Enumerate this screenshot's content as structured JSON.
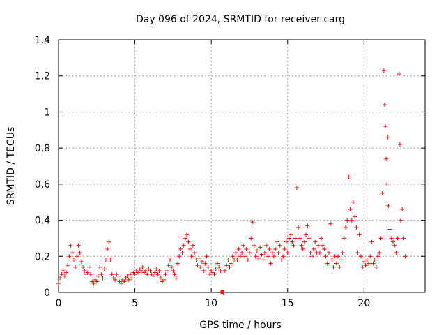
{
  "chart_data": {
    "type": "scatter",
    "title": "Day 096 of 2024, SRMTID for receiver carg",
    "xlabel": "GPS time / hours",
    "ylabel": "SRMTID / TECUs",
    "xlim": [
      0,
      24
    ],
    "ylim": [
      0,
      1.4
    ],
    "x_ticks": [
      0,
      5,
      10,
      15,
      20
    ],
    "x_tick_labels": [
      "0",
      "5",
      "10",
      "15",
      "20"
    ],
    "y_ticks": [
      0,
      0.2,
      0.4,
      0.6,
      0.8,
      1.0,
      1.2,
      1.4
    ],
    "y_tick_labels": [
      "0",
      "0.2",
      "0.4",
      "0.6",
      "0.8",
      "1",
      "1.2",
      "1.4"
    ],
    "grid": true,
    "marker": "+",
    "series": [
      {
        "name": "SRMTID",
        "color": "#ff0000",
        "x": [
          0.0,
          0.1,
          0.2,
          0.3,
          0.4,
          0.5,
          0.6,
          0.7,
          0.8,
          0.9,
          1.0,
          1.1,
          1.2,
          1.3,
          1.4,
          1.5,
          1.6,
          1.7,
          1.8,
          1.9,
          2.0,
          2.1,
          2.2,
          2.3,
          2.4,
          2.5,
          2.6,
          2.7,
          2.8,
          2.9,
          3.0,
          3.1,
          3.2,
          3.3,
          3.4,
          3.5,
          3.6,
          3.7,
          3.8,
          3.9,
          4.0,
          4.1,
          4.2,
          4.3,
          4.4,
          4.5,
          4.6,
          4.7,
          4.8,
          4.9,
          5.0,
          5.1,
          5.2,
          5.3,
          5.4,
          5.5,
          5.6,
          5.7,
          5.8,
          5.9,
          6.0,
          6.1,
          6.2,
          6.3,
          6.4,
          6.5,
          6.6,
          6.7,
          6.8,
          6.9,
          7.0,
          7.1,
          7.2,
          7.3,
          7.4,
          7.5,
          7.6,
          7.7,
          7.8,
          7.9,
          8.0,
          8.1,
          8.2,
          8.3,
          8.4,
          8.5,
          8.6,
          8.7,
          8.8,
          8.9,
          9.0,
          9.1,
          9.2,
          9.3,
          9.4,
          9.5,
          9.6,
          9.7,
          9.8,
          9.9,
          10.0,
          10.1,
          10.2,
          10.3,
          10.4,
          10.5,
          10.6,
          10.8,
          10.9,
          11.0,
          11.1,
          11.2,
          11.3,
          11.4,
          11.5,
          11.6,
          11.7,
          11.8,
          11.9,
          12.0,
          12.1,
          12.2,
          12.3,
          12.4,
          12.5,
          12.6,
          12.7,
          12.8,
          12.9,
          13.0,
          13.1,
          13.2,
          13.3,
          13.4,
          13.5,
          13.6,
          13.7,
          13.8,
          13.9,
          14.0,
          14.1,
          14.2,
          14.3,
          14.4,
          14.5,
          14.6,
          14.7,
          14.8,
          14.9,
          15.0,
          15.1,
          15.2,
          15.3,
          15.4,
          15.5,
          15.6,
          15.7,
          15.8,
          15.9,
          16.0,
          16.1,
          16.2,
          16.3,
          16.4,
          16.5,
          16.6,
          16.7,
          16.8,
          16.9,
          17.0,
          17.1,
          17.2,
          17.3,
          17.4,
          17.5,
          17.6,
          17.7,
          17.8,
          17.9,
          18.0,
          18.1,
          18.2,
          18.3,
          18.4,
          18.5,
          18.6,
          18.7,
          18.8,
          18.9,
          19.0,
          19.1,
          19.2,
          19.3,
          19.4,
          19.5,
          19.6,
          19.7,
          19.8,
          19.9,
          20.0,
          20.1,
          20.2,
          20.3,
          20.4,
          20.5,
          20.6,
          20.7,
          20.8,
          20.9,
          21.0,
          21.1,
          21.2,
          21.3,
          21.35,
          21.4,
          21.45,
          21.5,
          21.55,
          21.6,
          21.7,
          21.8,
          21.9,
          22.0,
          22.1,
          22.2,
          22.3,
          22.35,
          22.4,
          22.5,
          22.6,
          22.7
        ],
        "y": [
          0.05,
          0.08,
          0.1,
          0.12,
          0.09,
          0.11,
          0.15,
          0.2,
          0.26,
          0.22,
          0.18,
          0.14,
          0.2,
          0.26,
          0.22,
          0.17,
          0.14,
          0.12,
          0.1,
          0.11,
          0.14,
          0.1,
          0.06,
          0.05,
          0.07,
          0.06,
          0.09,
          0.14,
          0.1,
          0.08,
          0.13,
          0.18,
          0.24,
          0.28,
          0.18,
          0.1,
          0.08,
          0.07,
          0.1,
          0.09,
          0.06,
          0.05,
          0.07,
          0.06,
          0.08,
          0.09,
          0.07,
          0.1,
          0.08,
          0.11,
          0.1,
          0.12,
          0.11,
          0.13,
          0.12,
          0.14,
          0.11,
          0.12,
          0.1,
          0.13,
          0.12,
          0.1,
          0.09,
          0.11,
          0.13,
          0.1,
          0.12,
          0.08,
          0.06,
          0.07,
          0.1,
          0.12,
          0.15,
          0.18,
          0.14,
          0.12,
          0.1,
          0.08,
          0.16,
          0.2,
          0.24,
          0.22,
          0.26,
          0.3,
          0.32,
          0.28,
          0.24,
          0.2,
          0.26,
          0.22,
          0.18,
          0.15,
          0.19,
          0.14,
          0.17,
          0.12,
          0.16,
          0.2,
          0.14,
          0.1,
          0.12,
          0.11,
          0.1,
          0.13,
          0.16,
          0.14,
          0.12,
          0.0,
          0.12,
          0.15,
          0.18,
          0.14,
          0.16,
          0.2,
          0.18,
          0.22,
          0.18,
          0.24,
          0.2,
          0.22,
          0.26,
          0.2,
          0.24,
          0.18,
          0.22,
          0.3,
          0.39,
          0.26,
          0.2,
          0.23,
          0.19,
          0.25,
          0.21,
          0.18,
          0.22,
          0.26,
          0.2,
          0.24,
          0.16,
          0.22,
          0.2,
          0.24,
          0.28,
          0.22,
          0.26,
          0.18,
          0.2,
          0.24,
          0.28,
          0.22,
          0.3,
          0.32,
          0.28,
          0.26,
          0.3,
          0.58,
          0.36,
          0.3,
          0.26,
          0.24,
          0.28,
          0.32,
          0.37,
          0.3,
          0.22,
          0.2,
          0.24,
          0.28,
          0.22,
          0.26,
          0.22,
          0.3,
          0.26,
          0.24,
          0.2,
          0.16,
          0.22,
          0.38,
          0.18,
          0.14,
          0.2,
          0.16,
          0.2,
          0.14,
          0.18,
          0.22,
          0.3,
          0.36,
          0.4,
          0.64,
          0.46,
          0.4,
          0.5,
          0.42,
          0.36,
          0.22,
          0.32,
          0.2,
          0.14,
          0.17,
          0.15,
          0.18,
          0.16,
          0.2,
          0.28,
          0.16,
          0.18,
          0.14,
          0.2,
          0.22,
          0.3,
          0.55,
          1.23,
          1.04,
          0.92,
          0.74,
          0.6,
          0.86,
          0.48,
          0.35,
          0.3,
          0.28,
          0.26,
          0.22,
          0.3,
          1.21,
          0.82,
          0.4,
          0.46,
          0.3,
          0.2
        ]
      }
    ],
    "annotations": [
      {
        "x": 10.7,
        "y": 0.0,
        "marker": "square"
      }
    ]
  }
}
